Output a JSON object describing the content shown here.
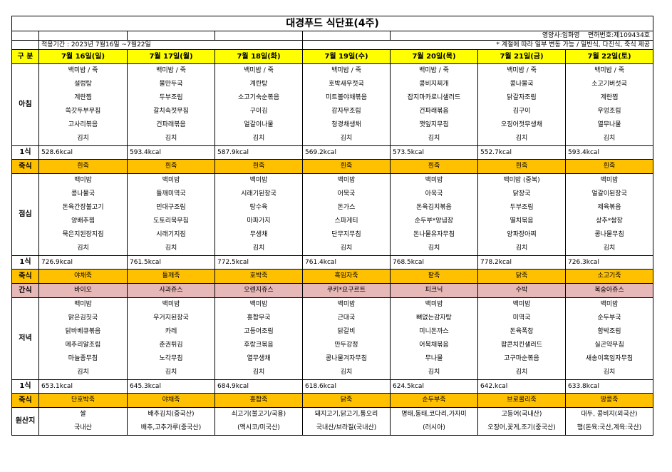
{
  "title": "대경푸드 식단표(4주)",
  "info": {
    "nutritionist": "영양사:임화영",
    "license": "면허번호:제109434호",
    "period": "적용기간 : 2023년 7월16일 ~7월22일",
    "note": "* 계절에 따라 일부 변동 가능 / 일반식, 다진식, 죽식 제공"
  },
  "header": {
    "label": "구 분",
    "days": [
      "7월 16일(일)",
      "7월 17일(월)",
      "7월 18일(화)",
      "7월 19일(수)",
      "7월 20일(목)",
      "7월 21일(금)",
      "7월 22일(토)"
    ]
  },
  "breakfast": {
    "label": "아침",
    "rows": [
      [
        "백미밥 / 죽",
        "백미밥 / 죽",
        "백미밥 / 죽",
        "백미밥 / 죽",
        "백미밥 / 죽",
        "백미밥 / 죽",
        "백미밥 / 죽"
      ],
      [
        "설렁탕",
        "물만두국",
        "계란탕",
        "호박새우젓국",
        "콩비지찌개",
        "콩나물국",
        "소고기버섯국"
      ],
      [
        "계란찜",
        "두부조림",
        "소고기숙순볶음",
        "미트볼야채볶음",
        "잡지마카로니샐러드",
        "닭갈자조림",
        "계란찜"
      ],
      [
        "쏙갓두부무침",
        "갈치속젓무침",
        "구이김",
        "감자무조림",
        "건파래볶음",
        "김구이",
        "우엉조림"
      ],
      [
        "고사리볶음",
        "건파래볶음",
        "얼갈이나물",
        "청경채생채",
        "깻잎지무침",
        "오징어젓무생채",
        "열무나물"
      ],
      [
        "김치",
        "김치",
        "김치",
        "김치",
        "김치",
        "김치",
        "김치"
      ]
    ],
    "kcal_label": "1식",
    "kcal": [
      "528.6kcal",
      "593.4kcal",
      "587.9kcal",
      "569.2kcal",
      "573.5kcal",
      "552.7kcal",
      "593.4kcal"
    ],
    "porridge_label": "죽식",
    "porridge": [
      "흰죽",
      "흰죽",
      "흰죽",
      "흰죽",
      "흰죽",
      "흰죽",
      "흰죽"
    ]
  },
  "lunch": {
    "label": "점심",
    "rows": [
      [
        "백미밥",
        "백미밥",
        "백미밥",
        "백미밥",
        "백미밥",
        "백미밥 (중복)",
        "백미밥"
      ],
      [
        "콩나물국",
        "들깨미역국",
        "시래기된장국",
        "어묵국",
        "아욱국",
        "닭장국",
        "얼갈이된장국"
      ],
      [
        "돈육간장불고기",
        "민대구조림",
        "탕수육",
        "돈가스",
        "돈육김치볶음",
        "두부조림",
        "제육볶음"
      ],
      [
        "양배추찜",
        "도토리묵무침",
        "마파가지",
        "스파게티",
        "순두부*양념장",
        "멸치볶음",
        "상추*쌈장"
      ],
      [
        "묵은지된장지짐",
        "시래기지짐",
        "무생채",
        "단무지무침",
        "돈나물유자무침",
        "양파장아찌",
        "콩나물무침"
      ],
      [
        "김치",
        "김치",
        "김치",
        "김치",
        "김치",
        "김치",
        "김치"
      ]
    ],
    "kcal_label": "1식",
    "kcal": [
      "726.9kcal",
      "761.5kcal",
      "772.5kcal",
      "761.4kcal",
      "768.5kcal",
      "778.2kcal",
      "726.3kcal"
    ],
    "porridge_label": "죽식",
    "porridge": [
      "야채죽",
      "들깨죽",
      "호박죽",
      "흑임자죽",
      "팥죽",
      "닭죽",
      "소고기죽"
    ],
    "snack_label": "간식",
    "snack": [
      "바이오",
      "사과쥬스",
      "오렌지쥬스",
      "쿠키*요구르트",
      "피크닉",
      "수박",
      "복숭아쥬스"
    ]
  },
  "dinner": {
    "label": "저녁",
    "rows": [
      [
        "백미밥",
        "백미밥",
        "백미밥",
        "백미밥",
        "백미밥",
        "백미밥",
        "백미밥"
      ],
      [
        "맑은김칫국",
        "우거지된장국",
        "홍합무국",
        "근대국",
        "뼈없는감자탕",
        "미역국",
        "순두부국"
      ],
      [
        "닭바베큐볶음",
        "카레",
        "고등어조림",
        "닭갈비",
        "미니돈까스",
        "돈육폭찹",
        "함박조림"
      ],
      [
        "메추리알조림",
        "춘권튀김",
        "후랑크볶음",
        "만두강정",
        "어묵채볶음",
        "팝콘치킨샐러드",
        "실곤약무침"
      ],
      [
        "마늘종무침",
        "노각무침",
        "열무생채",
        "콩나물겨자무침",
        "무나물",
        "고구마순볶음",
        "새송이흑임자무침"
      ],
      [
        "김치",
        "김치",
        "김치",
        "김치",
        "김치",
        "김치",
        "김치"
      ]
    ],
    "kcal_label": "1식",
    "kcal": [
      "653.1kcal",
      "645.3kcal",
      "684.9kcal",
      "618.6kcal",
      "624.5kcal",
      "642.kcal",
      "633.8kcal"
    ],
    "porridge_label": "죽식",
    "porridge": [
      "단호박죽",
      "야채죽",
      "홍합죽",
      "닭죽",
      "순두부죽",
      "브로콜리죽",
      "땅콩죽"
    ]
  },
  "origin": {
    "label": "원산지",
    "rows": [
      [
        "쌀",
        "배추김치(중국산)",
        "쇠고기(불고기/국용)",
        "돼지고기,닭고기,통오리",
        "명태,동태,코다리,가자미",
        "고등어(국내산)",
        "대두, 콩비지(외국산)"
      ],
      [
        "국내산",
        "배추,고추가루(중국산)",
        "(멕시코/미국산)",
        "국내산/브라질(국내산)",
        "(러시아)",
        "오징어,꽃게,조기(중국산)",
        "햄(돈육:국산,계육:국산)"
      ]
    ]
  }
}
